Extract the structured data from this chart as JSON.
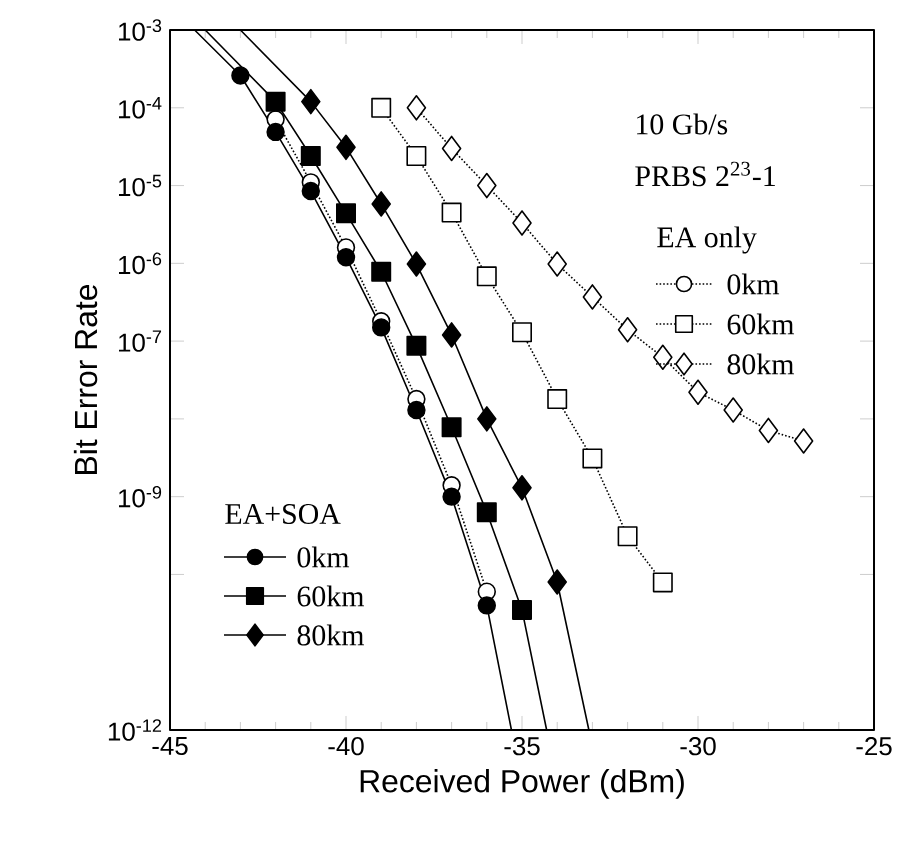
{
  "chart_data": {
    "type": "line",
    "xlabel": "Received Power (dBm)",
    "ylabel": "Bit Error Rate",
    "annotations": [
      "10 Gb/s",
      "PRBS 2$^{23}$-1",
      "EA only",
      "EA+SOA"
    ],
    "xlim": [
      -45,
      -25
    ],
    "xticks": [
      -45,
      -40,
      -35,
      -30,
      -25
    ],
    "ylim": [
      1e-12,
      0.001
    ],
    "log": "y",
    "yticks": [
      {
        "value": 0.001,
        "label": "10$^{-3}$"
      },
      {
        "value": 0.0001,
        "label": "10$^{-4}$"
      },
      {
        "value": 1e-05,
        "label": "10$^{-5}$"
      },
      {
        "value": 1e-06,
        "label": "10$^{-6}$"
      },
      {
        "value": 1e-07,
        "label": "10$^{-7}$"
      },
      {
        "value": 1e-08,
        "label": null
      },
      {
        "value": 1e-09,
        "label": "10$^{-9}$"
      },
      {
        "value": 1e-10,
        "label": null
      },
      {
        "value": 1e-12,
        "label": "10$^{-12}$"
      }
    ],
    "legend": "bottom left",
    "grid": false,
    "series": [
      {
        "name": "0km",
        "marker": "circle",
        "line_style": "dotted",
        "color": "#000000",
        "x": [
          -42,
          -41,
          -40,
          -39,
          -38,
          -37,
          -36
        ],
        "values": [
          7.1e-05,
          1.1e-05,
          1.6e-06,
          1.8e-07,
          1.8e-08,
          1.4e-09,
          6e-11
        ]
      },
      {
        "name": "60km",
        "marker": "square",
        "line_style": "dotted",
        "color": "#000000",
        "x": [
          -39,
          -38,
          -37,
          -36,
          -35,
          -34,
          -33,
          -32,
          -31
        ],
        "values": [
          0.0001,
          2.4e-05,
          4.5e-06,
          6.8e-07,
          1.3e-07,
          1.8e-08,
          3.1e-09,
          3.1e-10,
          7.9e-11
        ]
      },
      {
        "name": "80km",
        "marker": "diamond",
        "line_style": "dotted",
        "color": "#000000",
        "x": [
          -38,
          -37,
          -36,
          -35,
          -34,
          -33,
          -32,
          -31,
          -30,
          -29,
          -28,
          -27
        ],
        "values": [
          0.0001,
          3e-05,
          1e-05,
          3.3e-06,
          9.8e-07,
          3.7e-07,
          1.4e-07,
          6.2e-08,
          2.2e-08,
          1.3e-08,
          7.1e-09,
          5.2e-09
        ]
      },
      {
        "name": "0km",
        "type": "scatter",
        "marker": "circle",
        "line_style": "solid",
        "color": "#000000",
        "x": [
          -43,
          -42,
          -41,
          -40,
          -39,
          -38,
          -37,
          -36
        ],
        "values": [
          0.00026,
          4.9e-05,
          8.5e-06,
          1.2e-06,
          1.5e-07,
          1.3e-08,
          1e-09,
          4e-11
        ]
      },
      {
        "name": "60km",
        "type": "scatter",
        "marker": "square",
        "line_style": "solid",
        "color": "#000000",
        "x": [
          -42,
          -41,
          -40,
          -39,
          -38,
          -37,
          -36,
          -35
        ],
        "values": [
          0.00012,
          2.4e-05,
          4.4e-06,
          7.8e-07,
          8.7e-08,
          7.8e-09,
          6.3e-10,
          3.5e-11
        ]
      },
      {
        "name": "80km",
        "type": "scatter",
        "marker": "diamond",
        "line_style": "solid",
        "color": "#000000",
        "x": [
          -41,
          -40,
          -39,
          -38,
          -37,
          -36,
          -35,
          -34
        ],
        "values": [
          0.00012,
          3.1e-05,
          5.8e-06,
          9.8e-07,
          1.2e-07,
          1e-08,
          1.3e-09,
          8e-11
        ]
      },
      {
        "type": "line",
        "marker": "none",
        "line_style": "solid",
        "color": "#000000",
        "x": [
          -44.3,
          -43,
          -42,
          -41,
          -40,
          -39,
          -38,
          -37,
          -36,
          -35.3
        ],
        "values": [
          0.001,
          0.00026,
          4.9e-05,
          8.5e-06,
          1.2e-06,
          1.5e-07,
          1.3e-08,
          1e-09,
          4e-11,
          1e-12
        ]
      },
      {
        "type": "line",
        "marker": "none",
        "line_style": "solid",
        "color": "#000000",
        "x": [
          -44.0,
          -42,
          -41,
          -40,
          -39,
          -38,
          -37,
          -36,
          -35,
          -34.3
        ],
        "values": [
          0.001,
          0.00012,
          2.4e-05,
          4.4e-06,
          7.8e-07,
          8.7e-08,
          7.8e-09,
          6.3e-10,
          3.5e-11,
          1e-12
        ]
      },
      {
        "type": "line",
        "marker": "none",
        "line_style": "solid",
        "color": "#000000",
        "x": [
          -43.0,
          -41,
          -40,
          -39,
          -38,
          -37,
          -36,
          -35,
          -34,
          -33.1
        ],
        "values": [
          0.001,
          0.00012,
          3.1e-05,
          5.8e-06,
          9.8e-07,
          1.2e-07,
          1e-08,
          1.3e-09,
          8e-11,
          1e-12
        ]
      }
    ]
  }
}
